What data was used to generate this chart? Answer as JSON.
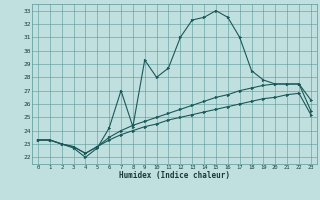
{
  "xlabel": "Humidex (Indice chaleur)",
  "background_color": "#c0e0e0",
  "grid_color": "#5a9898",
  "line_color": "#1a5858",
  "xlim": [
    -0.5,
    23.5
  ],
  "ylim": [
    21.5,
    33.5
  ],
  "xticks": [
    0,
    1,
    2,
    3,
    4,
    5,
    6,
    7,
    8,
    9,
    10,
    11,
    12,
    13,
    14,
    15,
    16,
    17,
    18,
    19,
    20,
    21,
    22,
    23
  ],
  "yticks": [
    22,
    23,
    24,
    25,
    26,
    27,
    28,
    29,
    30,
    31,
    32,
    33
  ],
  "line1_x": [
    0,
    1,
    2,
    3,
    4,
    5,
    6,
    7,
    8,
    9,
    10,
    11,
    12,
    13,
    14,
    15,
    16,
    17,
    18,
    19,
    20,
    21,
    22,
    23
  ],
  "line1_y": [
    23.3,
    23.3,
    23.0,
    22.7,
    22.0,
    22.7,
    24.2,
    27.0,
    24.3,
    29.3,
    28.0,
    28.7,
    31.0,
    32.3,
    32.5,
    33.0,
    32.5,
    31.0,
    28.5,
    27.8,
    27.5,
    27.5,
    27.5,
    26.3
  ],
  "line2_x": [
    0,
    1,
    2,
    3,
    4,
    5,
    6,
    7,
    8,
    9,
    10,
    11,
    12,
    13,
    14,
    15,
    16,
    17,
    18,
    19,
    20,
    21,
    22,
    23
  ],
  "line2_y": [
    23.3,
    23.3,
    23.0,
    22.8,
    22.3,
    22.8,
    23.5,
    24.0,
    24.4,
    24.7,
    25.0,
    25.3,
    25.6,
    25.9,
    26.2,
    26.5,
    26.7,
    27.0,
    27.2,
    27.4,
    27.5,
    27.5,
    27.5,
    25.5
  ],
  "line3_x": [
    0,
    1,
    2,
    3,
    4,
    5,
    6,
    7,
    8,
    9,
    10,
    11,
    12,
    13,
    14,
    15,
    16,
    17,
    18,
    19,
    20,
    21,
    22,
    23
  ],
  "line3_y": [
    23.3,
    23.3,
    23.0,
    22.8,
    22.3,
    22.8,
    23.3,
    23.7,
    24.0,
    24.3,
    24.5,
    24.8,
    25.0,
    25.2,
    25.4,
    25.6,
    25.8,
    26.0,
    26.2,
    26.4,
    26.5,
    26.7,
    26.8,
    25.2
  ]
}
